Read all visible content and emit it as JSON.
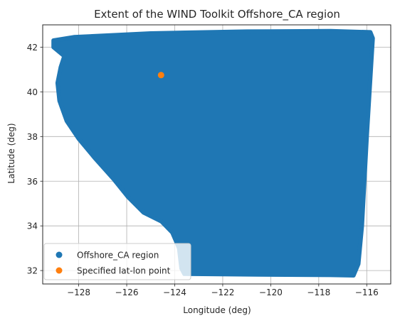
{
  "chart_data": {
    "type": "scatter",
    "title": "Extent of the WIND Toolkit Offshore_CA region",
    "xlabel": "Longitude (deg)",
    "ylabel": "Latitude (deg)",
    "xlim": [
      -129.5,
      -115.0
    ],
    "ylim": [
      31.4,
      43.0
    ],
    "xticks": [
      -128,
      -126,
      -124,
      -122,
      -120,
      -118,
      -116
    ],
    "yticks": [
      32,
      34,
      36,
      38,
      40,
      42
    ],
    "xtick_labels": [
      "−128",
      "−126",
      "−124",
      "−122",
      "−120",
      "−118",
      "−116"
    ],
    "ytick_labels": [
      "32",
      "34",
      "36",
      "38",
      "40",
      "42"
    ],
    "grid": true,
    "legend_position": "lower-left",
    "series": [
      {
        "name": "Offshore_CA region",
        "color": "#1f77b4",
        "marker": "circle",
        "boundary": [
          [
            -129.05,
            42.3
          ],
          [
            -128.2,
            42.45
          ],
          [
            -125.0,
            42.62
          ],
          [
            -121.0,
            42.7
          ],
          [
            -117.5,
            42.72
          ],
          [
            -115.85,
            42.67
          ],
          [
            -115.75,
            42.4
          ],
          [
            -116.0,
            38.0
          ],
          [
            -116.2,
            34.0
          ],
          [
            -116.35,
            32.3
          ],
          [
            -116.55,
            31.78
          ],
          [
            -117.5,
            31.8
          ],
          [
            -120.5,
            31.82
          ],
          [
            -123.6,
            31.85
          ],
          [
            -123.72,
            32.1
          ],
          [
            -123.82,
            33.0
          ],
          [
            -124.1,
            33.7
          ],
          [
            -124.55,
            34.2
          ],
          [
            -125.3,
            34.6
          ],
          [
            -125.95,
            35.3
          ],
          [
            -126.55,
            36.1
          ],
          [
            -127.3,
            37.0
          ],
          [
            -128.0,
            37.9
          ],
          [
            -128.5,
            38.7
          ],
          [
            -128.8,
            39.6
          ],
          [
            -128.88,
            40.4
          ],
          [
            -128.75,
            41.1
          ],
          [
            -128.6,
            41.6
          ],
          [
            -129.05,
            42.0
          ]
        ]
      },
      {
        "name": "Specified lat-lon point",
        "color": "#ff7f0e",
        "marker": "circle",
        "points": [
          [
            -124.57,
            40.75
          ]
        ]
      }
    ]
  }
}
